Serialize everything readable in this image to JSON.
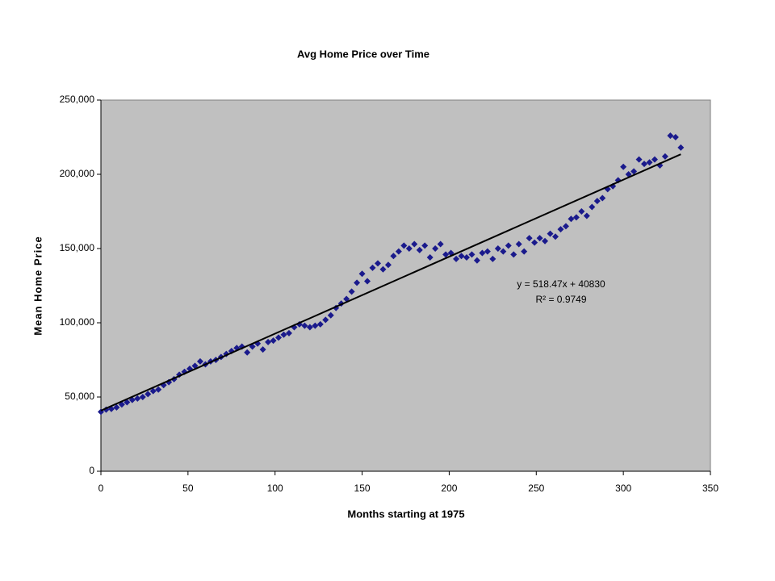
{
  "chart_data": {
    "type": "scatter",
    "title": "Avg Home Price over Time",
    "x_label": "Months starting at 1975",
    "y_label": "Mean Home Price",
    "xlim": [
      0,
      350
    ],
    "xticks": [
      0,
      50,
      100,
      150,
      200,
      250,
      300,
      350
    ],
    "ylim": [
      0,
      250000
    ],
    "yticks": [
      0,
      {
        "value": 50000,
        "label": "50,000"
      },
      {
        "value": 100000,
        "label": "100,000"
      },
      {
        "value": 150000,
        "label": "150,000"
      },
      {
        "value": 200000,
        "label": "200,000"
      },
      {
        "value": 250000,
        "label": "250,000"
      }
    ],
    "plot_background": "#c0c0c0",
    "series": [
      {
        "color": "#1a1a8c",
        "x": [
          0,
          3,
          6,
          9,
          12,
          15,
          18,
          21,
          24,
          27,
          30,
          33,
          36,
          39,
          42,
          45,
          48,
          51,
          54,
          57,
          60,
          63,
          66,
          69,
          72,
          75,
          78,
          81,
          84,
          87,
          90,
          93,
          96,
          99,
          102,
          105,
          108,
          111,
          114,
          117,
          120,
          123,
          126,
          129,
          132,
          135,
          138,
          141,
          144,
          147,
          150,
          153,
          156,
          159,
          162,
          165,
          168,
          171,
          174,
          177,
          180,
          183,
          186,
          189,
          192,
          195,
          198,
          201,
          204,
          207,
          210,
          213,
          216,
          219,
          222,
          225,
          228,
          231,
          234,
          237,
          240,
          243,
          246,
          249,
          252,
          255,
          258,
          261,
          264,
          267,
          270,
          273,
          276,
          279,
          282,
          285,
          288,
          291,
          294,
          297,
          300,
          303,
          306,
          309,
          312,
          315,
          318,
          321,
          324,
          327,
          330,
          333
        ],
        "values": [
          40000,
          41500,
          42000,
          43000,
          45000,
          46500,
          48000,
          49000,
          50000,
          52000,
          54000,
          55000,
          58000,
          60000,
          62000,
          65000,
          67000,
          69000,
          71000,
          74000,
          72000,
          74000,
          75000,
          77000,
          79000,
          81000,
          83000,
          84000,
          80000,
          84000,
          86000,
          82000,
          87000,
          88000,
          90000,
          92000,
          93000,
          97000,
          99000,
          98000,
          97000,
          98000,
          99000,
          102000,
          105000,
          110000,
          113000,
          116000,
          121000,
          127000,
          133000,
          128000,
          137000,
          140000,
          136000,
          139000,
          145000,
          148000,
          152000,
          150000,
          153000,
          149000,
          152000,
          144000,
          150000,
          153000,
          146000,
          147000,
          143000,
          145000,
          144000,
          146000,
          142000,
          147000,
          148000,
          143000,
          150000,
          148000,
          152000,
          146000,
          153000,
          148000,
          157000,
          154000,
          157000,
          155000,
          160000,
          158000,
          163000,
          165000,
          170000,
          171000,
          175000,
          172000,
          178000,
          182000,
          184000,
          190000,
          192000,
          196000,
          205000,
          200000,
          202000,
          210000,
          207000,
          208000,
          210000,
          206000,
          212000,
          226000,
          225000,
          218000
        ]
      }
    ],
    "trendline": {
      "color": "#000000",
      "x": [
        0,
        333
      ],
      "values": [
        40830,
        213481
      ]
    },
    "annotations": [
      "y = 518.47x + 40830",
      "R² = 0.9749"
    ]
  }
}
